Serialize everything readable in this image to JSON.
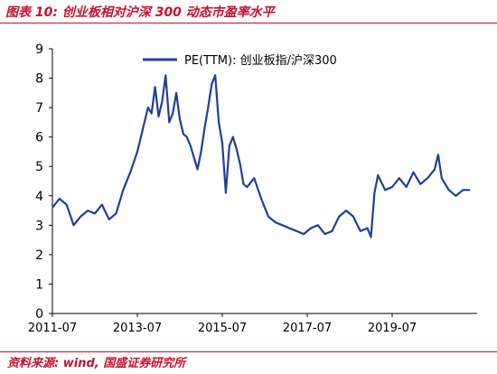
{
  "figure": {
    "title": "图表 10:  创业板相对沪深 300 动态市盈率水平",
    "source": "资料来源: wind, 国盛证券研究所"
  },
  "colors": {
    "series": "#1f3f99",
    "frame": "#c8102e",
    "axis": "#000000"
  },
  "chart_data": {
    "type": "line",
    "title": "",
    "xlabel": "",
    "ylabel": "",
    "xlim": [
      "2011-07",
      "2021-07"
    ],
    "ylim": [
      0,
      9
    ],
    "y_ticks": [
      0,
      1,
      2,
      3,
      4,
      5,
      6,
      7,
      8,
      9
    ],
    "x_ticks": [
      "2011-07",
      "2013-07",
      "2015-07",
      "2017-07",
      "2019-07"
    ],
    "grid": false,
    "legend": {
      "position": "top-center",
      "entries": [
        "PE(TTM):  创业板指/沪深300"
      ]
    },
    "series": [
      {
        "name": "PE(TTM):  创业板指/沪深300",
        "x": [
          "2011-07",
          "2011-09",
          "2011-11",
          "2012-01",
          "2012-03",
          "2012-05",
          "2012-07",
          "2012-09",
          "2012-11",
          "2013-01",
          "2013-03",
          "2013-05",
          "2013-07",
          "2013-08",
          "2013-09",
          "2013-10",
          "2013-11",
          "2013-12",
          "2014-01",
          "2014-02",
          "2014-03",
          "2014-04",
          "2014-05",
          "2014-06",
          "2014-07",
          "2014-08",
          "2014-09",
          "2014-10",
          "2014-11",
          "2014-12",
          "2015-01",
          "2015-02",
          "2015-03",
          "2015-04",
          "2015-05",
          "2015-06",
          "2015-07",
          "2015-08",
          "2015-09",
          "2015-10",
          "2015-11",
          "2015-12",
          "2016-01",
          "2016-02",
          "2016-04",
          "2016-06",
          "2016-08",
          "2016-10",
          "2016-12",
          "2017-02",
          "2017-04",
          "2017-06",
          "2017-08",
          "2017-10",
          "2017-12",
          "2018-02",
          "2018-04",
          "2018-06",
          "2018-08",
          "2018-10",
          "2018-12",
          "2019-01",
          "2019-02",
          "2019-03",
          "2019-05",
          "2019-07",
          "2019-09",
          "2019-11",
          "2020-01",
          "2020-03",
          "2020-05",
          "2020-07",
          "2020-08",
          "2020-09",
          "2020-11",
          "2021-01",
          "2021-03",
          "2021-05"
        ],
        "values": [
          3.6,
          3.9,
          3.7,
          3.0,
          3.3,
          3.5,
          3.4,
          3.7,
          3.2,
          3.4,
          4.2,
          4.8,
          5.5,
          6.0,
          6.5,
          7.0,
          6.8,
          7.7,
          6.7,
          7.2,
          8.1,
          6.5,
          6.8,
          7.5,
          6.6,
          6.1,
          6.0,
          5.7,
          5.3,
          4.9,
          5.5,
          6.3,
          7.0,
          7.8,
          8.1,
          6.5,
          5.8,
          4.1,
          5.7,
          6.0,
          5.6,
          5.1,
          4.4,
          4.3,
          4.6,
          3.9,
          3.3,
          3.1,
          3.0,
          2.9,
          2.8,
          2.7,
          2.9,
          3.0,
          2.7,
          2.8,
          3.3,
          3.5,
          3.3,
          2.8,
          2.9,
          2.6,
          4.1,
          4.7,
          4.2,
          4.3,
          4.6,
          4.3,
          4.8,
          4.4,
          4.6,
          4.9,
          5.4,
          4.6,
          4.2,
          4.0,
          4.2,
          4.2
        ]
      }
    ]
  }
}
